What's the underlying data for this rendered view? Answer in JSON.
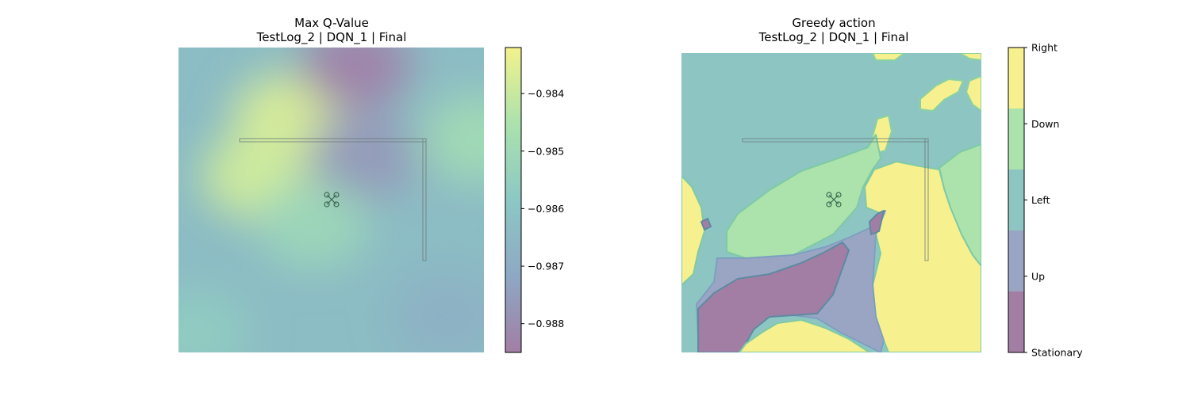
{
  "chart_data": [
    {
      "type": "heatmap",
      "title": "Max Q-Value",
      "subtitle": "TestLog_2 | DQN_1 | Final",
      "colorbar": {
        "ticks": [
          -0.984,
          -0.985,
          -0.986,
          -0.987,
          -0.988
        ],
        "tick_labels": [
          "−0.984",
          "−0.985",
          "−0.986",
          "−0.987",
          "−0.988"
        ],
        "range": [
          -0.9885,
          -0.9832
        ]
      },
      "cmap_colors": [
        "#a27ea5",
        "#8ea8c4",
        "#8cc8c4",
        "#abe2ad",
        "#f4f28c"
      ],
      "hotspots": [
        {
          "cx": 0.36,
          "cy": 0.23,
          "value": -0.98375
        },
        {
          "cx": 0.26,
          "cy": 0.42,
          "value": -0.9839
        },
        {
          "cx": 0.58,
          "cy": 0.06,
          "value": -0.9883
        },
        {
          "cx": 0.6,
          "cy": 0.36,
          "value": -0.9876
        },
        {
          "cx": 0.98,
          "cy": 0.3,
          "value": -0.985
        },
        {
          "cx": 0.88,
          "cy": 0.88,
          "value": -0.9868
        },
        {
          "cx": 0.05,
          "cy": 0.94,
          "value": -0.9857
        },
        {
          "cx": 0.44,
          "cy": 0.58,
          "value": -0.9852
        }
      ],
      "base_value": -0.9863
    },
    {
      "type": "heatmap",
      "title": "Greedy action",
      "subtitle": "TestLog_2 | DQN_1 | Final",
      "categories": [
        "Stationary",
        "Up",
        "Left",
        "Down",
        "Right"
      ],
      "category_colors": [
        "#a27ea5",
        "#9aa5c4",
        "#8dc5c2",
        "#ace3ac",
        "#f7f08f"
      ],
      "colorbar": {
        "tick_labels": [
          "Right",
          "Down",
          "Left",
          "Up",
          "Stationary"
        ]
      }
    }
  ],
  "icons": {
    "drone": "drone-icon"
  }
}
